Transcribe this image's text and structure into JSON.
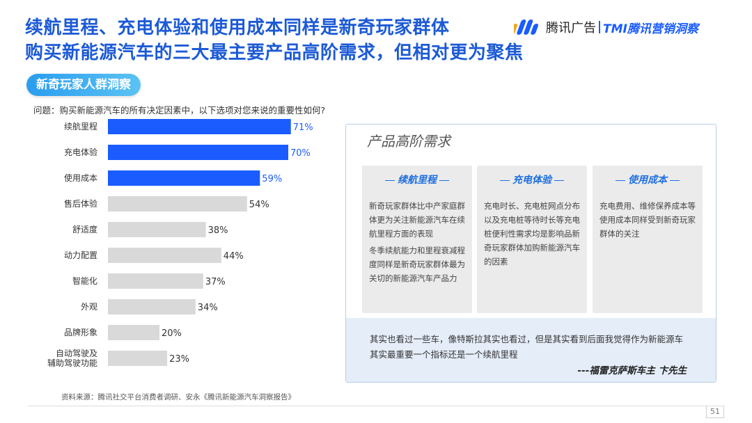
{
  "header": {
    "title_line1": "续航里程、充电体验和使用成本同样是新奇玩家群体",
    "title_line2": "购买新能源汽车的三大最主要产品高阶需求，但相对更为聚焦"
  },
  "logo": {
    "brand": "腾讯广告",
    "sub": "TMI腾讯营销洞察",
    "brand_color": "#1a5cff"
  },
  "segment_pill": "新奇玩家人群洞察",
  "question": "问题：购买新能源汽车的所有决定因素中，以下选项对您来说的重要性如何?",
  "chart_data": {
    "type": "bar",
    "orientation": "horizontal",
    "categories": [
      "续航里程",
      "充电体验",
      "使用成本",
      "售后体验",
      "舒适度",
      "动力配置",
      "智能化",
      "外观",
      "品牌形象",
      "自动驾驶及辅助驾驶功能"
    ],
    "category_lines": [
      [
        "续航里程"
      ],
      [
        "充电体验"
      ],
      [
        "使用成本"
      ],
      [
        "售后体验"
      ],
      [
        "舒适度"
      ],
      [
        "动力配置"
      ],
      [
        "智能化"
      ],
      [
        "外观"
      ],
      [
        "品牌形象"
      ],
      [
        "自动驾驶及",
        "辅助驾驶功能"
      ]
    ],
    "values": [
      71,
      70,
      59,
      54,
      38,
      44,
      37,
      34,
      20,
      23
    ],
    "value_labels": [
      "71%",
      "70%",
      "59%",
      "54%",
      "38%",
      "44%",
      "37%",
      "34%",
      "20%",
      "23%"
    ],
    "highlight_count": 3,
    "xlim": [
      0,
      80
    ],
    "grid": false,
    "colors": {
      "highlight": "#1a5cff",
      "normal": "#d9d9d9",
      "highlight_label": "#1a5cff",
      "normal_label": "#333333"
    }
  },
  "panel": {
    "title": "产品高阶需求",
    "cards": [
      {
        "title": "续航里程",
        "paragraphs": [
          "新奇玩家群体比中产家庭群体更为关注新能源汽车在续航里程方面的表现",
          "冬季续航能力和里程衰减程度同样是新奇玩家群体最为关切的新能源汽车产品力"
        ]
      },
      {
        "title": "充电体验",
        "paragraphs": [
          "充电时长、充电桩网点分布以及充电桩等待时长等充电桩便利性需求均是影响品新奇玩家群体加购新能源汽车的因素"
        ]
      },
      {
        "title": "使用成本",
        "paragraphs": [
          "充电费用、维修保养成本等使用成本同样受到新奇玩家群体的关注"
        ]
      }
    ],
    "quote": "其实也看过一些车，像特斯拉其实也看过，但是其实看到后面我觉得作为新能源车其实最重要一个指标还是一个续航里程",
    "quote_author": "---福雷克萨斯车主 卞先生"
  },
  "source": "资料来源：腾讯社交平台消费者调研、安永《腾讯新能源汽车洞察报告》",
  "page_number": "51"
}
